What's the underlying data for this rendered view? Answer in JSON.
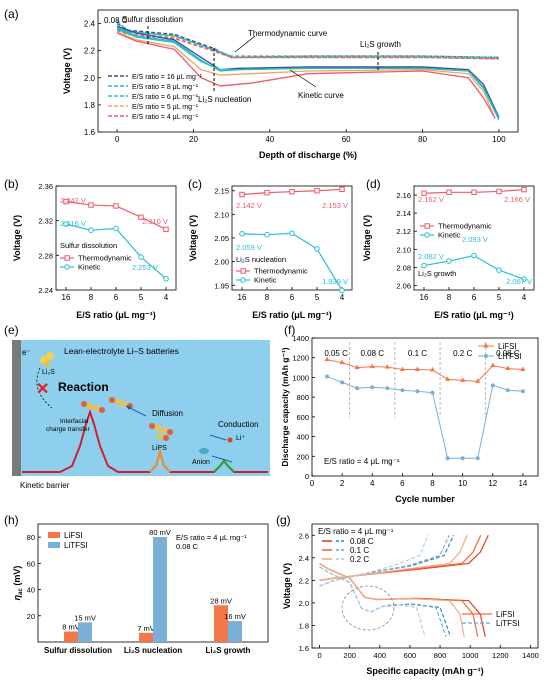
{
  "panel_letters": [
    "(a)",
    "(b)",
    "(c)",
    "(d)",
    "(e)",
    "(f)",
    "(h)",
    "(g)"
  ],
  "colors": {
    "r16": "#3d4a9c",
    "r8": "#26b0e8",
    "r6": "#1fc8a2",
    "r5": "#f4a06a",
    "r4": "#f05a6a",
    "thermo": "#f05a6a",
    "kinetic": "#26c0d8",
    "lifsi": "#f4774a",
    "litfsi": "#7ab0d8"
  },
  "chart_data": [
    {
      "id": "a",
      "type": "line",
      "xlabel": "Depth of discharge (%)",
      "ylabel": "Voltage (V)",
      "xlim": [
        -5,
        105
      ],
      "ylim": [
        1.6,
        2.5
      ],
      "xticks": [
        "0",
        "20",
        "40",
        "60",
        "80",
        "100"
      ],
      "yticks": [
        "1.6",
        "1.8",
        "2.0",
        "2.2",
        "2.4"
      ],
      "corner_text": "0.08 C",
      "annotations": [
        "Sulfur dissolution",
        "Thermodynamic curve",
        "Li₂S growth",
        "Li₂S nucleation",
        "Kinetic curve"
      ],
      "legend": [
        "E/S ratio = 16 μL mg⁻¹",
        "E/S ratio = 8 μL mg⁻¹",
        "E/S ratio = 6 μL mg⁻¹",
        "E/S ratio = 5 μL mg⁻¹",
        "E/S ratio = 4 μL mg⁻¹"
      ],
      "thermo_curves": [
        [
          [
            0,
            2.4
          ],
          [
            3,
            2.35
          ],
          [
            15,
            2.32
          ],
          [
            25,
            2.22
          ],
          [
            30,
            2.15
          ],
          [
            50,
            2.16
          ],
          [
            80,
            2.16
          ],
          [
            100,
            2.15
          ]
        ],
        [
          [
            0,
            2.38
          ],
          [
            3,
            2.34
          ],
          [
            15,
            2.31
          ],
          [
            25,
            2.21
          ],
          [
            30,
            2.15
          ],
          [
            50,
            2.15
          ],
          [
            80,
            2.15
          ],
          [
            100,
            2.14
          ]
        ],
        [
          [
            0,
            2.42
          ],
          [
            3,
            2.34
          ],
          [
            15,
            2.31
          ],
          [
            25,
            2.21
          ],
          [
            30,
            2.16
          ],
          [
            50,
            2.16
          ],
          [
            80,
            2.16
          ],
          [
            100,
            2.15
          ]
        ],
        [
          [
            0,
            2.36
          ],
          [
            3,
            2.33
          ],
          [
            15,
            2.3
          ],
          [
            25,
            2.2
          ],
          [
            30,
            2.15
          ],
          [
            50,
            2.15
          ],
          [
            80,
            2.15
          ],
          [
            100,
            2.14
          ]
        ],
        [
          [
            0,
            2.35
          ],
          [
            3,
            2.32
          ],
          [
            15,
            2.29
          ],
          [
            25,
            2.2
          ],
          [
            30,
            2.15
          ],
          [
            50,
            2.15
          ],
          [
            80,
            2.15
          ],
          [
            100,
            2.14
          ]
        ]
      ],
      "kinetic_curves": [
        [
          [
            0,
            2.38
          ],
          [
            5,
            2.33
          ],
          [
            15,
            2.28
          ],
          [
            22,
            2.15
          ],
          [
            27,
            2.06
          ],
          [
            32,
            2.07
          ],
          [
            50,
            2.08
          ],
          [
            80,
            2.08
          ],
          [
            92,
            2.06
          ],
          [
            96,
            1.95
          ],
          [
            100,
            1.71
          ]
        ],
        [
          [
            0,
            2.37
          ],
          [
            5,
            2.31
          ],
          [
            15,
            2.27
          ],
          [
            22,
            2.13
          ],
          [
            27,
            2.05
          ],
          [
            32,
            2.06
          ],
          [
            50,
            2.07
          ],
          [
            80,
            2.07
          ],
          [
            92,
            2.05
          ],
          [
            96,
            1.93
          ],
          [
            100,
            1.7
          ]
        ],
        [
          [
            0,
            2.36
          ],
          [
            5,
            2.3
          ],
          [
            15,
            2.26
          ],
          [
            22,
            2.12
          ],
          [
            27,
            2.06
          ],
          [
            32,
            2.06
          ],
          [
            50,
            2.07
          ],
          [
            80,
            2.07
          ],
          [
            92,
            2.05
          ],
          [
            96,
            1.92
          ],
          [
            100,
            1.69
          ]
        ],
        [
          [
            0,
            2.34
          ],
          [
            5,
            2.28
          ],
          [
            15,
            2.23
          ],
          [
            22,
            2.06
          ],
          [
            27,
            2.02
          ],
          [
            35,
            2.03
          ],
          [
            50,
            2.05
          ],
          [
            80,
            2.06
          ],
          [
            92,
            2.03
          ],
          [
            96,
            1.9
          ],
          [
            99,
            1.7
          ]
        ],
        [
          [
            0,
            2.33
          ],
          [
            5,
            2.27
          ],
          [
            15,
            2.21
          ],
          [
            22,
            2.0
          ],
          [
            27,
            1.94
          ],
          [
            35,
            1.96
          ],
          [
            50,
            2.03
          ],
          [
            80,
            2.05
          ],
          [
            92,
            2.0
          ],
          [
            96,
            1.85
          ],
          [
            99,
            1.7
          ]
        ]
      ]
    },
    {
      "id": "b",
      "type": "line",
      "xlabel": "E/S ratio (μL mg⁻¹)",
      "ylabel": "Voltage (V)",
      "categories": [
        "16",
        "8",
        "6",
        "5",
        "4"
      ],
      "ylim": [
        2.24,
        2.36
      ],
      "yticks": [
        "2.24",
        "2.28",
        "2.32",
        "2.36"
      ],
      "title_text": "Sulfur dissolution",
      "series": [
        {
          "name": "Thermodynamic",
          "values": [
            2.342,
            2.338,
            2.337,
            2.324,
            2.31
          ]
        },
        {
          "name": "Kinetic",
          "values": [
            2.316,
            2.309,
            2.311,
            2.278,
            2.253
          ]
        }
      ],
      "value_labels": [
        "2.342 V",
        "2.310 V",
        "2.316 V",
        "2.253 V"
      ]
    },
    {
      "id": "c",
      "type": "line",
      "xlabel": "E/S ratio (μL mg⁻¹)",
      "ylabel": "Voltage (V)",
      "categories": [
        "16",
        "8",
        "6",
        "5",
        "4"
      ],
      "ylim": [
        1.94,
        2.16
      ],
      "yticks": [
        "1.95",
        "2.00",
        "2.05",
        "2.10",
        "2.15"
      ],
      "title_text": "Li₂S nucleation",
      "series": [
        {
          "name": "Thermodynamic",
          "values": [
            2.142,
            2.146,
            2.148,
            2.15,
            2.153
          ]
        },
        {
          "name": "Kinetic",
          "values": [
            2.059,
            2.057,
            2.06,
            2.027,
            1.939
          ]
        }
      ],
      "value_labels": [
        "2.142 V",
        "2.153 V",
        "2.059 V",
        "1.939 V"
      ]
    },
    {
      "id": "d",
      "type": "line",
      "xlabel": "E/S ratio (μL mg⁻¹)",
      "ylabel": "Voltage (V)",
      "categories": [
        "16",
        "8",
        "6",
        "5",
        "4"
      ],
      "ylim": [
        2.055,
        2.17
      ],
      "yticks": [
        "2.06",
        "2.08",
        "2.10",
        "2.12",
        "2.14",
        "2.16"
      ],
      "title_text": "Li₂S growth",
      "series": [
        {
          "name": "Thermodynamic",
          "values": [
            2.162,
            2.163,
            2.163,
            2.164,
            2.166
          ]
        },
        {
          "name": "Kinetic",
          "values": [
            2.082,
            2.087,
            2.093,
            2.077,
            2.067
          ]
        }
      ],
      "value_labels": [
        "2.162 V",
        "2.166 V",
        "2.082 V",
        "2.093 V",
        "2.067 V"
      ]
    },
    {
      "id": "f",
      "type": "scatter",
      "xlabel": "Cycle number",
      "ylabel": "Discharge capacity (mAh g⁻¹)",
      "xlim": [
        0,
        15
      ],
      "ylim": [
        0,
        1400
      ],
      "xticks": [
        "0",
        "2",
        "4",
        "6",
        "8",
        "10",
        "12",
        "14"
      ],
      "yticks": [
        "0",
        "200",
        "400",
        "600",
        "800",
        "1000",
        "1200",
        "1400"
      ],
      "rate_labels": [
        "0.05 C",
        "0.08 C",
        "0.1 C",
        "0.2 C",
        "0.08 C"
      ],
      "footnote": "E/S ratio = 4 μL mg⁻¹",
      "series": [
        {
          "name": "LiFSI",
          "x": [
            1,
            2,
            3,
            4,
            5,
            6,
            7,
            8,
            9,
            10,
            11,
            12,
            13,
            14
          ],
          "values": [
            1180,
            1150,
            1100,
            1110,
            1105,
            1080,
            1080,
            1075,
            980,
            970,
            960,
            1120,
            1090,
            1080
          ]
        },
        {
          "name": "LiTFSI",
          "x": [
            1,
            2,
            3,
            4,
            5,
            6,
            7,
            8,
            9,
            10,
            11,
            12,
            13,
            14
          ],
          "values": [
            1010,
            950,
            890,
            900,
            890,
            870,
            860,
            845,
            180,
            180,
            180,
            920,
            870,
            860
          ]
        }
      ]
    },
    {
      "id": "h",
      "type": "bar",
      "ylabel": "ηac (mV)",
      "categories": [
        "Sulfur dissolution",
        "Li₂S nucleation",
        "Li₂S growth"
      ],
      "ylim": [
        0,
        90
      ],
      "yticks": [
        "20",
        "40",
        "60",
        "80"
      ],
      "note_lines": [
        "E/S ratio = 4 μL mg⁻¹",
        "0.08 C"
      ],
      "series": [
        {
          "name": "LiFSI",
          "values": [
            8,
            7,
            28
          ],
          "labels": [
            "8 mV",
            "7 mV",
            "28 mV"
          ]
        },
        {
          "name": "LiTFSI",
          "values": [
            15,
            80,
            16
          ],
          "labels": [
            "15 mV",
            "80 mV",
            "16 mV"
          ]
        }
      ]
    },
    {
      "id": "g",
      "type": "line",
      "xlabel": "Specific capacity (mAh g⁻¹)",
      "ylabel": "Voltage (V)",
      "xlim": [
        -50,
        1450
      ],
      "ylim": [
        1.6,
        2.7
      ],
      "xticks": [
        "0",
        "200",
        "400",
        "600",
        "800",
        "1000",
        "1200",
        "1400"
      ],
      "yticks": [
        "1.6",
        "1.8",
        "2.0",
        "2.2",
        "2.4",
        "2.6"
      ],
      "header": "E/S ratio = 4 μL mg⁻¹",
      "rate_legend": [
        "0.08 C",
        "0.1 C",
        "0.2 C"
      ],
      "series_legend": [
        "LiFSI",
        "LiTFSI"
      ]
    }
  ],
  "schematic": {
    "title": "Lean-electrolyte Li–S batteries",
    "electron": "e⁻",
    "li2s": "Li₂S",
    "reaction": "Reaction",
    "transfer_line1": "Interfacial",
    "transfer_line2": "charge transfer",
    "diffusion": "Diffusion",
    "lips": "LiPS",
    "conduction": "Conduction",
    "li_ion": "Li⁺",
    "anion": "Anion",
    "barrier": "Kinetic barrier"
  }
}
